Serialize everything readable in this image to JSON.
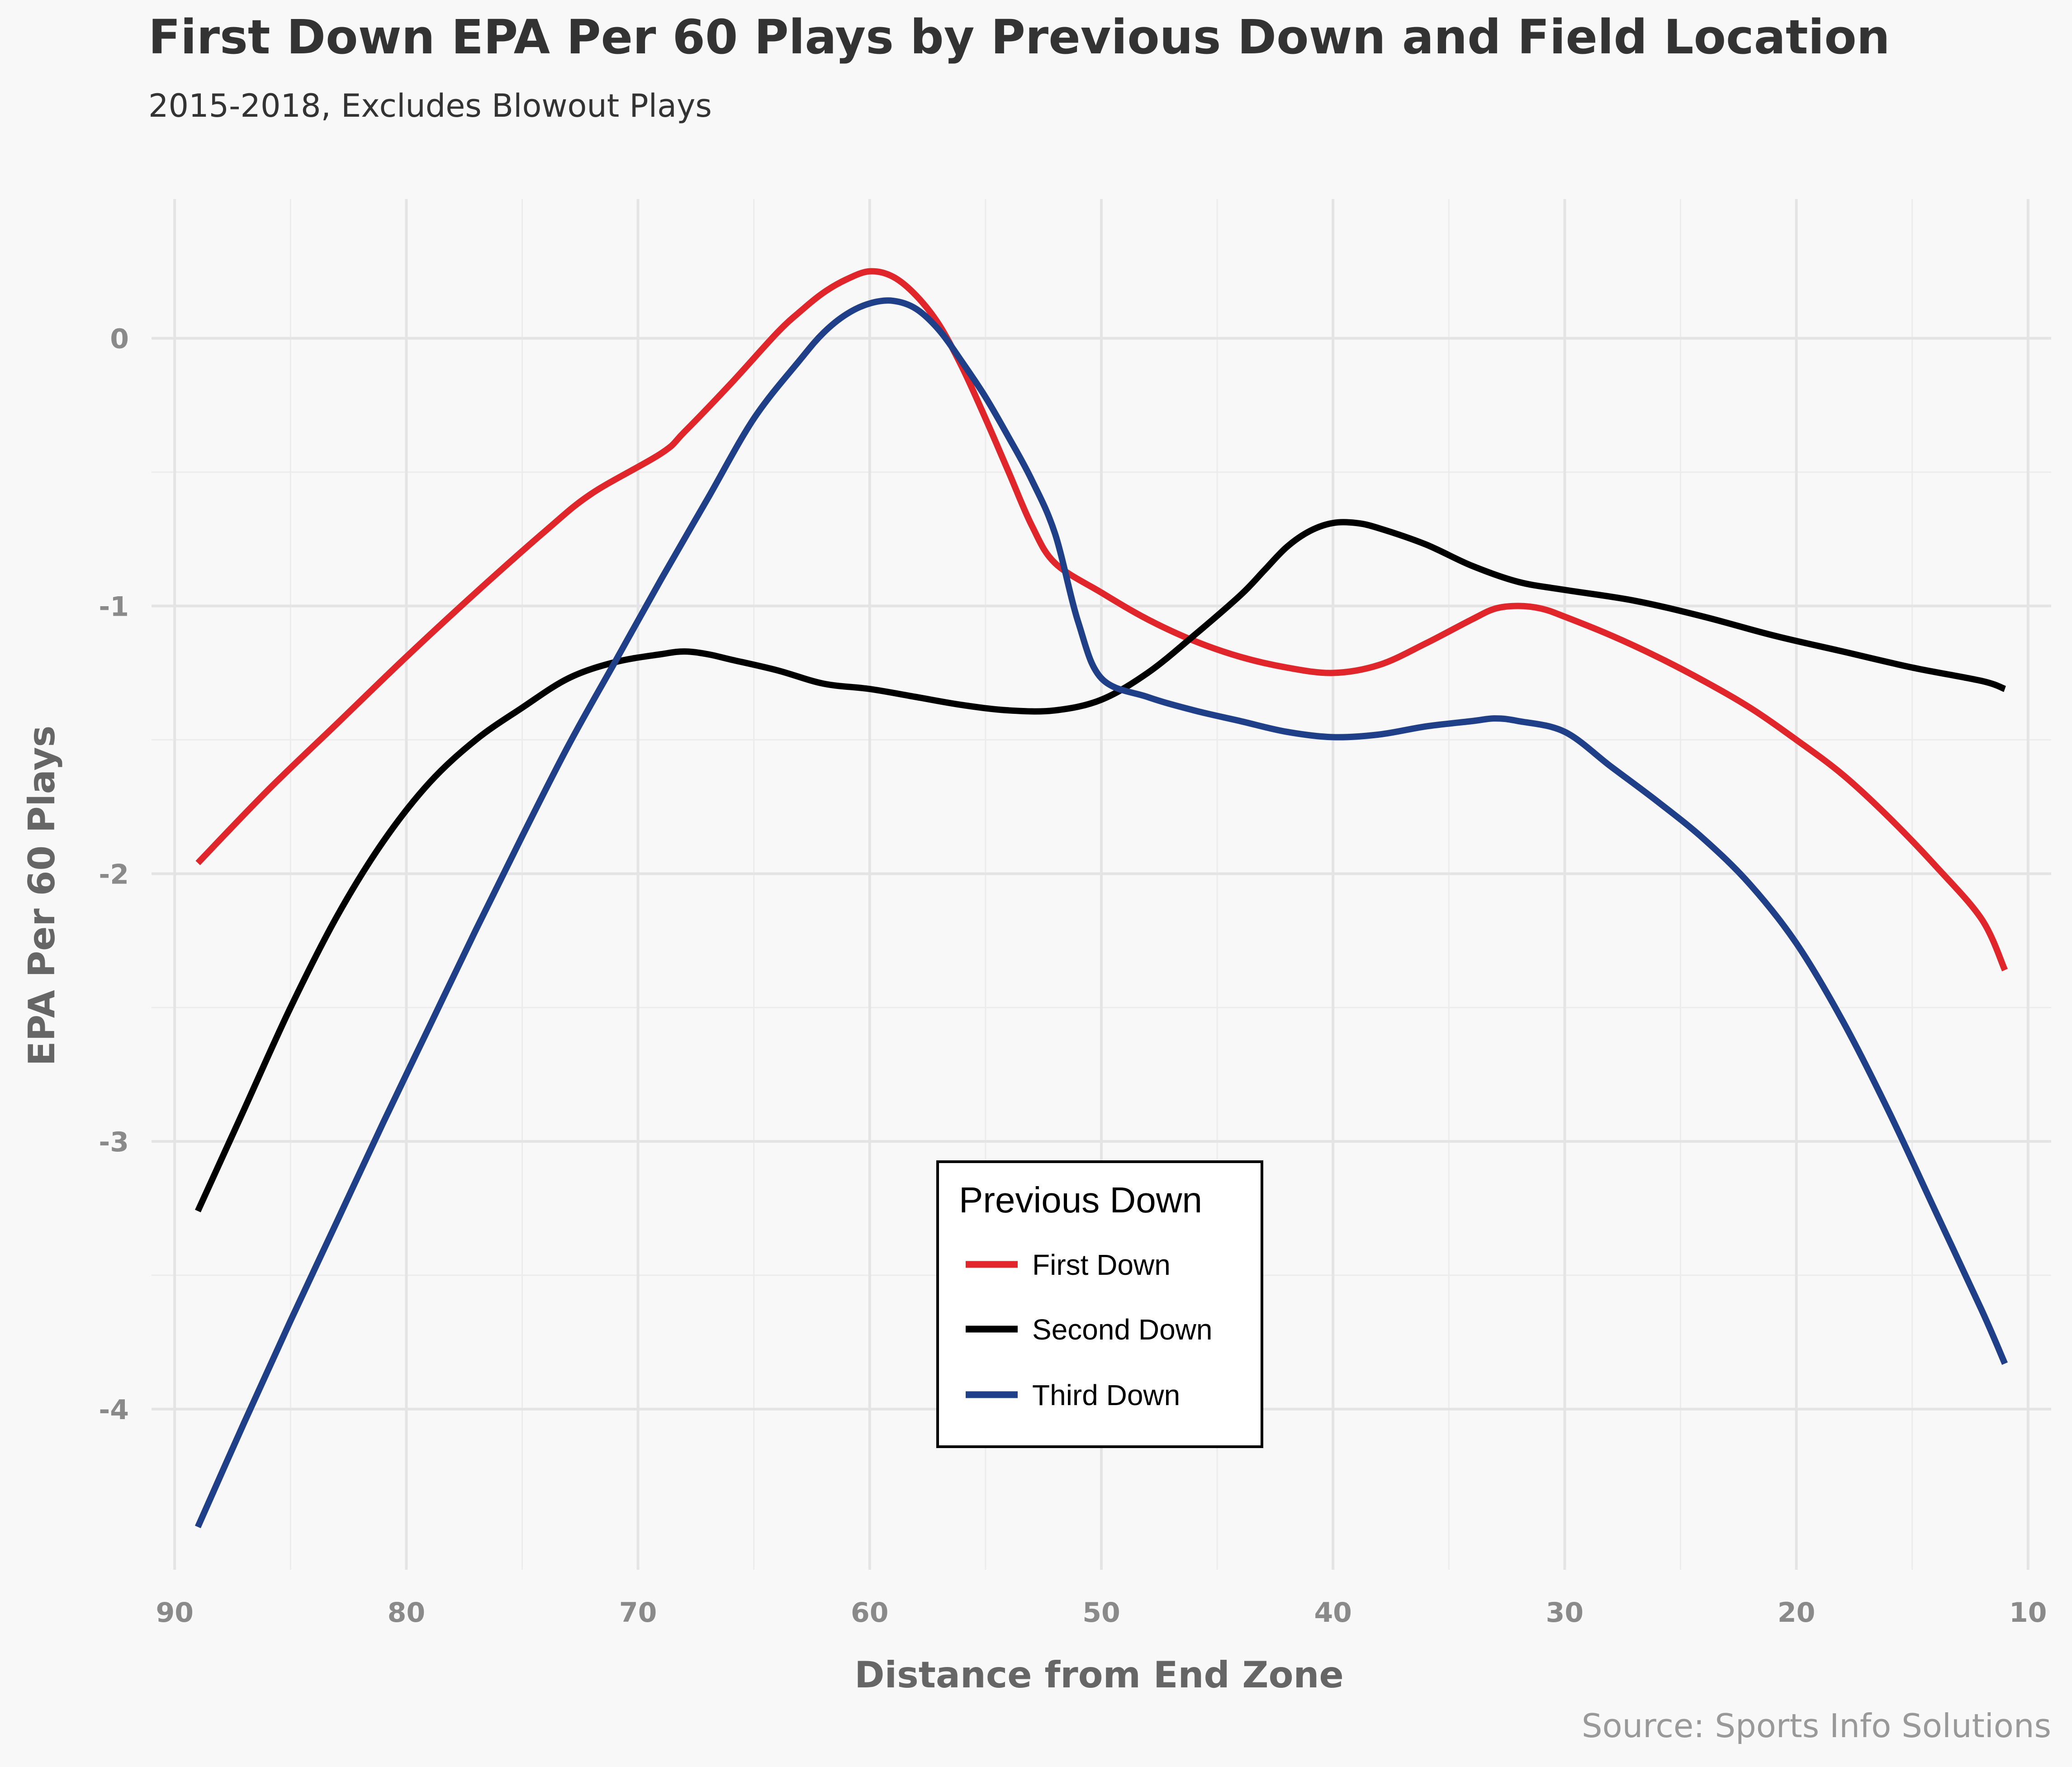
{
  "chart_data": {
    "type": "line",
    "title": "First Down EPA Per 60 Plays by Previous Down and Field Location",
    "subtitle": "2015-2018, Excludes Blowout Plays",
    "xlabel": "Distance from End Zone",
    "ylabel": "EPA Per 60 Plays",
    "caption": "Source: Sports Info Solutions",
    "xlim": [
      91,
      9
    ],
    "ylim": [
      -4.6,
      0.52
    ],
    "x_reversed": true,
    "x_ticks": [
      90,
      80,
      70,
      60,
      50,
      40,
      30,
      20,
      10
    ],
    "y_ticks": [
      0,
      -1,
      -2,
      -3,
      -4
    ],
    "x_tick_labels": [
      "90",
      "80",
      "70",
      "60",
      "50",
      "40",
      "30",
      "20",
      "10"
    ],
    "y_tick_labels": [
      "0",
      "-1",
      "-2",
      "-3",
      "-4"
    ],
    "grid": true,
    "legend": {
      "title": "Previous Down",
      "position": "bottom-center",
      "entries": [
        "First Down",
        "Second Down",
        "Third Down"
      ]
    },
    "series": [
      {
        "name": "First Down",
        "color": "#e0262b",
        "x": [
          89,
          86,
          83,
          80,
          77,
          74,
          72,
          69,
          68,
          66,
          64,
          63,
          62,
          61,
          60,
          59,
          58,
          57,
          56,
          55,
          54,
          53,
          52,
          50,
          48,
          46,
          44,
          42,
          40,
          38,
          36,
          34,
          33,
          32,
          31,
          30,
          28,
          26,
          24,
          22,
          20,
          18,
          16,
          14,
          12,
          11
        ],
        "values": [
          -1.96,
          -1.69,
          -1.44,
          -1.19,
          -0.95,
          -0.72,
          -0.58,
          -0.43,
          -0.35,
          -0.17,
          0.02,
          0.1,
          0.17,
          0.22,
          0.25,
          0.23,
          0.16,
          0.05,
          -0.11,
          -0.3,
          -0.5,
          -0.7,
          -0.84,
          -0.95,
          -1.05,
          -1.13,
          -1.19,
          -1.23,
          -1.25,
          -1.22,
          -1.14,
          -1.05,
          -1.01,
          -1.0,
          -1.01,
          -1.04,
          -1.11,
          -1.19,
          -1.28,
          -1.38,
          -1.5,
          -1.63,
          -1.79,
          -1.97,
          -2.17,
          -2.36
        ]
      },
      {
        "name": "Second Down",
        "color": "#000000",
        "x": [
          89,
          87,
          85,
          83,
          81,
          79,
          77,
          75,
          73,
          71,
          69,
          68,
          67,
          66,
          64,
          62,
          60,
          58,
          56,
          54,
          52,
          50,
          48,
          46,
          44,
          43,
          42,
          41,
          40,
          39,
          38,
          36,
          34,
          32,
          30,
          27,
          24,
          21,
          18,
          15,
          12,
          11
        ],
        "values": [
          -3.26,
          -2.88,
          -2.5,
          -2.16,
          -1.88,
          -1.66,
          -1.5,
          -1.38,
          -1.27,
          -1.21,
          -1.18,
          -1.17,
          -1.18,
          -1.2,
          -1.24,
          -1.29,
          -1.31,
          -1.34,
          -1.37,
          -1.39,
          -1.39,
          -1.35,
          -1.25,
          -1.11,
          -0.96,
          -0.87,
          -0.78,
          -0.72,
          -0.69,
          -0.69,
          -0.71,
          -0.77,
          -0.85,
          -0.91,
          -0.94,
          -0.98,
          -1.04,
          -1.11,
          -1.17,
          -1.23,
          -1.28,
          -1.31
        ]
      },
      {
        "name": "Third Down",
        "color": "#1f3f88",
        "x": [
          89,
          87,
          85,
          83,
          81,
          79,
          77,
          75,
          73,
          71,
          69,
          67,
          65,
          63,
          62,
          61,
          60,
          59,
          58,
          57,
          56,
          55,
          54,
          53,
          52,
          51,
          50,
          48,
          46,
          44,
          42,
          40,
          38,
          36,
          34,
          33,
          32,
          30,
          28,
          26,
          24,
          22,
          20,
          18,
          16,
          14,
          12,
          11
        ],
        "values": [
          -4.44,
          -4.05,
          -3.67,
          -3.3,
          -2.93,
          -2.57,
          -2.21,
          -1.86,
          -1.52,
          -1.21,
          -0.9,
          -0.6,
          -0.3,
          -0.08,
          0.02,
          0.09,
          0.13,
          0.14,
          0.11,
          0.03,
          -0.09,
          -0.22,
          -0.37,
          -0.53,
          -0.73,
          -1.06,
          -1.27,
          -1.34,
          -1.39,
          -1.43,
          -1.47,
          -1.49,
          -1.48,
          -1.45,
          -1.43,
          -1.42,
          -1.43,
          -1.47,
          -1.6,
          -1.73,
          -1.87,
          -2.04,
          -2.26,
          -2.55,
          -2.89,
          -3.26,
          -3.63,
          -3.83
        ]
      }
    ]
  }
}
